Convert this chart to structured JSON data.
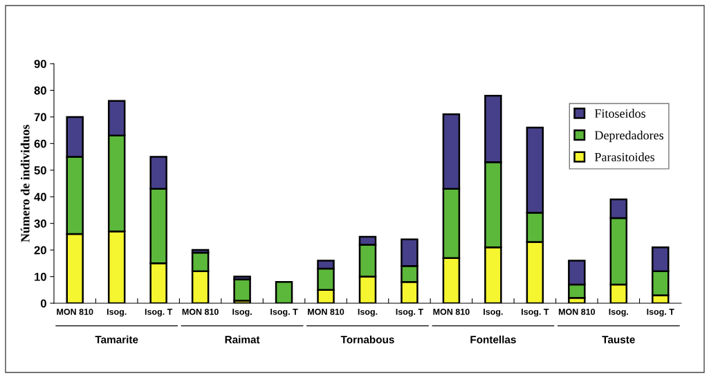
{
  "chart_data": {
    "type": "bar",
    "stacked": true,
    "ylabel": "Número de individuos",
    "categories": [
      "MON 810",
      "Isog.",
      "Isog. T",
      "MON 810",
      "Isog.",
      "Isog. T",
      "MON 810",
      "Isog.",
      "Isog. T",
      "MON 810",
      "Isog.",
      "Isog. T",
      "MON 810",
      "Isog.",
      "Isog. T"
    ],
    "annotations": [
      "Tamarite",
      "Raimat",
      "Tornabous",
      "Fontellas",
      "Tauste"
    ],
    "series": [
      {
        "name": "Parasitoides",
        "color": "#f5f530",
        "values": [
          26,
          27,
          15,
          12,
          1,
          0,
          5,
          10,
          8,
          17,
          21,
          23,
          2,
          7,
          3
        ]
      },
      {
        "name": "Depredadores",
        "color": "#5cb83a",
        "values": [
          29,
          36,
          28,
          7,
          8,
          8,
          8,
          12,
          6,
          26,
          32,
          11,
          5,
          25,
          9
        ]
      },
      {
        "name": "Fitoseidos",
        "color": "#46408a",
        "values": [
          15,
          13,
          12,
          1,
          1,
          0,
          3,
          3,
          10,
          28,
          25,
          32,
          9,
          7,
          9
        ]
      }
    ],
    "ylim": [
      0,
      90
    ],
    "yticks": [
      0,
      10,
      20,
      30,
      40,
      50,
      60,
      70,
      80,
      90
    ],
    "grid": false,
    "legend": "top right"
  }
}
